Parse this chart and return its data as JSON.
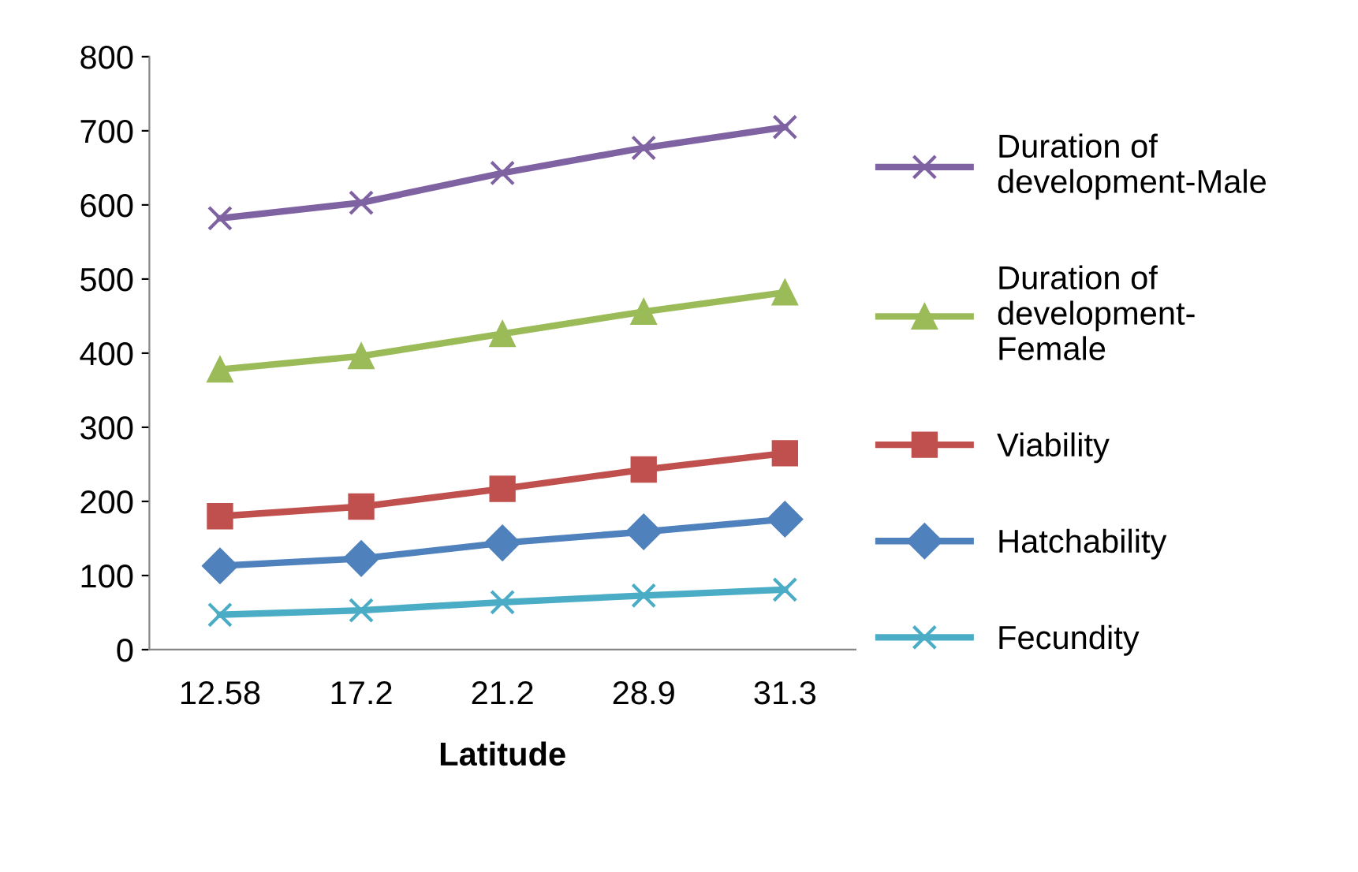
{
  "chart_data": {
    "type": "line",
    "xlabel": "Latitude",
    "categories": [
      "12.58",
      "17.2",
      "21.2",
      "28.9",
      "31.3"
    ],
    "ylim": [
      0,
      800
    ],
    "yticks": [
      0,
      100,
      200,
      300,
      400,
      500,
      600,
      700,
      800
    ],
    "grid": false,
    "legend": "right",
    "series": [
      {
        "name": "Duration of\ndevelopment-Male",
        "color": "#7f62a1",
        "marker": "cross",
        "values": [
          582,
          603,
          643,
          677,
          705
        ]
      },
      {
        "name": "Duration of\ndevelopment-\nFemale",
        "color": "#9bbb59",
        "marker": "triangle",
        "values": [
          378,
          396,
          426,
          456,
          482
        ]
      },
      {
        "name": "Viability",
        "color": "#c0504d",
        "marker": "square",
        "values": [
          180,
          193,
          217,
          243,
          265
        ]
      },
      {
        "name": "Hatchability",
        "color": "#4f81bd",
        "marker": "diamond",
        "values": [
          113,
          123,
          144,
          159,
          176
        ]
      },
      {
        "name": "Fecundity",
        "color": "#4bacc6",
        "marker": "cross",
        "values": [
          47,
          53,
          64,
          73,
          81
        ]
      }
    ]
  }
}
